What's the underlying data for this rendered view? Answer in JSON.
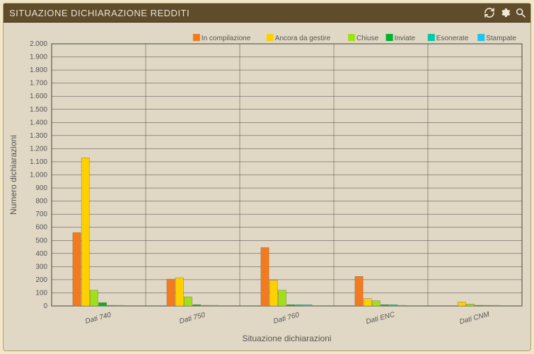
{
  "header": {
    "title": "SITUAZIONE DICHIARAZIONE REDDITI",
    "icons": {
      "refresh": "refresh-icon",
      "settings": "gear-icon",
      "search": "search-icon"
    }
  },
  "chart": {
    "type": "bar",
    "background_color": "#e0d8c4",
    "plot_background": "#e0d8c4",
    "grid_color": "#444444",
    "grid_line_width": 0.5,
    "legend_position": "top-right",
    "axes": {
      "x": {
        "title": "Situazione dichiarazioni",
        "categories": [
          "Dati 740",
          "Dati 750",
          "Dati 760",
          "Dati ENC",
          "Dati CNM"
        ],
        "title_fontsize": 12,
        "label_fontsize": 10,
        "label_rotation": -15
      },
      "y": {
        "title": "Numero dichiarazioni",
        "min": 0,
        "max": 2000,
        "tick_step": 100,
        "title_fontsize": 12,
        "label_fontsize": 10
      }
    },
    "series": [
      {
        "name": "In compilazione",
        "color": "#f37a1f",
        "values": [
          560,
          205,
          445,
          225,
          0
        ]
      },
      {
        "name": "Ancora da gestire",
        "color": "#ffd000",
        "values": [
          1130,
          215,
          195,
          55,
          30
        ]
      },
      {
        "name": "Chiuse",
        "color": "#9fe01a",
        "values": [
          120,
          70,
          120,
          40,
          15
        ]
      },
      {
        "name": "Inviate",
        "color": "#00b22d",
        "values": [
          25,
          10,
          10,
          10,
          5
        ]
      },
      {
        "name": "Esonerate",
        "color": "#00c9a7",
        "values": [
          5,
          5,
          10,
          10,
          5
        ]
      },
      {
        "name": "Stampate",
        "color": "#1fc3ef",
        "values": [
          5,
          5,
          10,
          5,
          5
        ]
      }
    ],
    "bar_group_width": 0.55
  }
}
